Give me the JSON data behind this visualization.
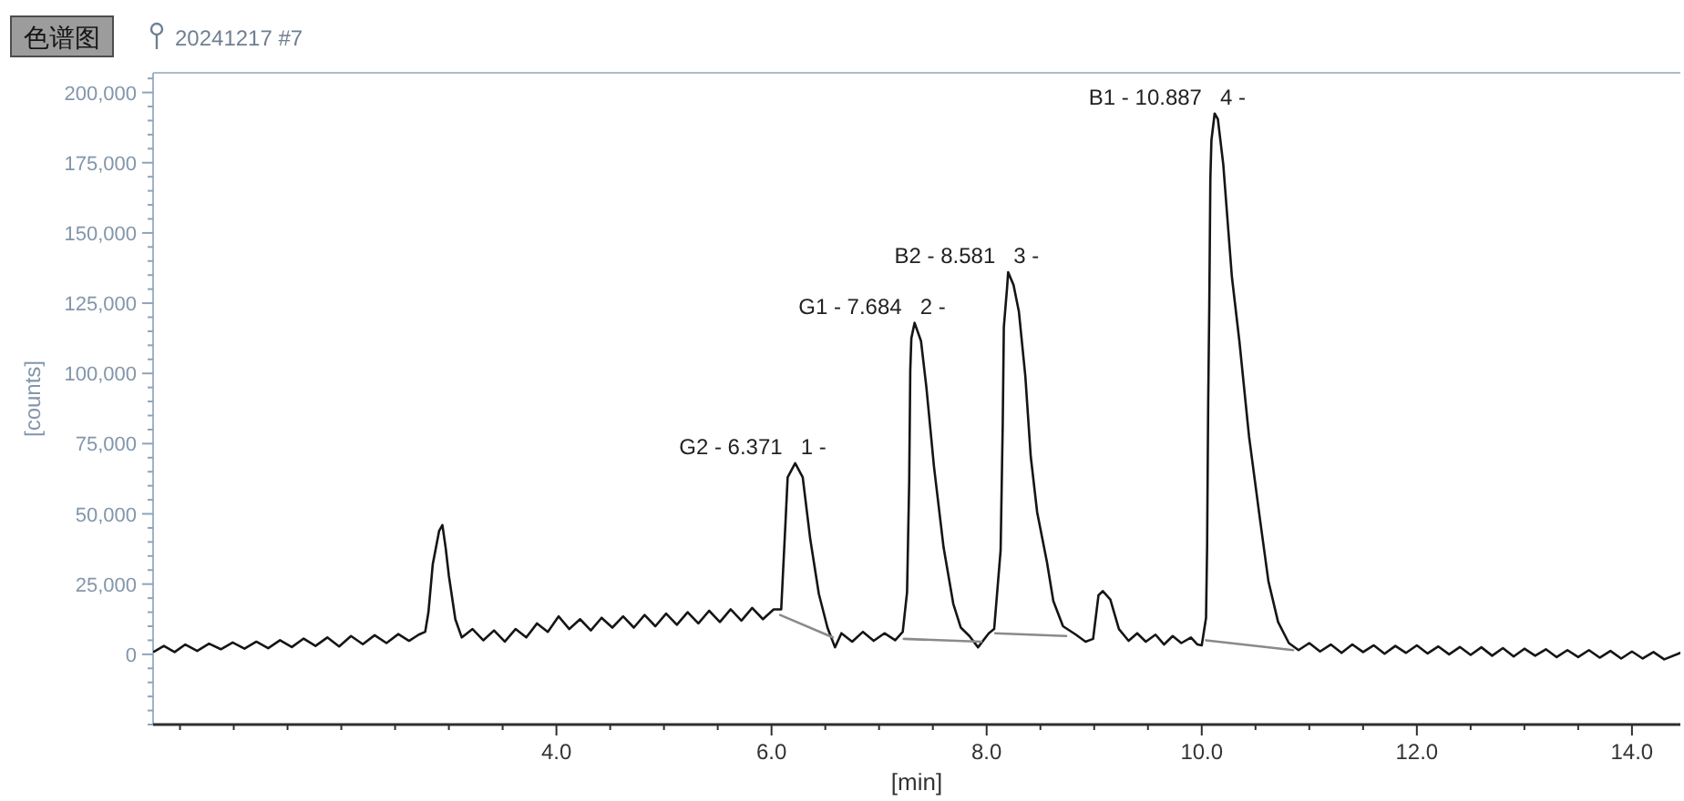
{
  "chart_data": {
    "type": "line",
    "title": "色谱图",
    "subtitle": "20241217 #7",
    "xlabel": "[min]",
    "ylabel": "[counts]",
    "xlim": [
      0.25,
      14.45
    ],
    "ylim": [
      -25000,
      207000
    ],
    "xticks": [
      {
        "value": 0.5,
        "label": null
      },
      {
        "value": 1,
        "label": null
      },
      {
        "value": 1.5,
        "label": null
      },
      {
        "value": 2,
        "label": null
      },
      {
        "value": 2.5,
        "label": null
      },
      {
        "value": 3,
        "label": null
      },
      {
        "value": 3.5,
        "label": null
      },
      {
        "value": 4,
        "label": "4.0"
      },
      {
        "value": 4.5,
        "label": null
      },
      {
        "value": 5,
        "label": null
      },
      {
        "value": 5.5,
        "label": null
      },
      {
        "value": 6,
        "label": "6.0"
      },
      {
        "value": 6.5,
        "label": null
      },
      {
        "value": 7,
        "label": null
      },
      {
        "value": 7.5,
        "label": null
      },
      {
        "value": 8,
        "label": "8.0"
      },
      {
        "value": 8.5,
        "label": null
      },
      {
        "value": 9,
        "label": null
      },
      {
        "value": 9.5,
        "label": null
      },
      {
        "value": 10,
        "label": "10.0"
      },
      {
        "value": 10.5,
        "label": null
      },
      {
        "value": 11,
        "label": null
      },
      {
        "value": 11.5,
        "label": null
      },
      {
        "value": 12,
        "label": "12.0"
      },
      {
        "value": 12.5,
        "label": null
      },
      {
        "value": 13,
        "label": null
      },
      {
        "value": 13.5,
        "label": null
      },
      {
        "value": 14,
        "label": "14.0"
      }
    ],
    "yticks": [
      {
        "value": -25000,
        "label": null
      },
      {
        "value": -20000,
        "label": null
      },
      {
        "value": -15000,
        "label": null
      },
      {
        "value": -10000,
        "label": null
      },
      {
        "value": -5000,
        "label": null
      },
      0,
      {
        "value": 5000,
        "label": null
      },
      {
        "value": 10000,
        "label": null
      },
      {
        "value": 15000,
        "label": null
      },
      {
        "value": 20000,
        "label": null
      },
      {
        "value": 25000,
        "label": "25,000"
      },
      {
        "value": 30000,
        "label": null
      },
      {
        "value": 35000,
        "label": null
      },
      {
        "value": 40000,
        "label": null
      },
      {
        "value": 45000,
        "label": null
      },
      {
        "value": 50000,
        "label": "50,000"
      },
      {
        "value": 55000,
        "label": null
      },
      {
        "value": 60000,
        "label": null
      },
      {
        "value": 65000,
        "label": null
      },
      {
        "value": 70000,
        "label": null
      },
      {
        "value": 75000,
        "label": "75,000"
      },
      {
        "value": 80000,
        "label": null
      },
      {
        "value": 85000,
        "label": null
      },
      {
        "value": 90000,
        "label": null
      },
      {
        "value": 95000,
        "label": null
      },
      {
        "value": 100000,
        "label": "100,000"
      },
      {
        "value": 105000,
        "label": null
      },
      {
        "value": 110000,
        "label": null
      },
      {
        "value": 115000,
        "label": null
      },
      {
        "value": 120000,
        "label": null
      },
      {
        "value": 125000,
        "label": "125,000"
      },
      {
        "value": 130000,
        "label": null
      },
      {
        "value": 135000,
        "label": null
      },
      {
        "value": 140000,
        "label": null
      },
      {
        "value": 145000,
        "label": null
      },
      {
        "value": 150000,
        "label": "150,000"
      },
      {
        "value": 155000,
        "label": null
      },
      {
        "value": 160000,
        "label": null
      },
      {
        "value": 165000,
        "label": null
      },
      {
        "value": 170000,
        "label": null
      },
      {
        "value": 175000,
        "label": "175,000"
      },
      {
        "value": 180000,
        "label": null
      },
      {
        "value": 185000,
        "label": null
      },
      {
        "value": 190000,
        "label": null
      },
      {
        "value": 195000,
        "label": null
      },
      {
        "value": 200000,
        "label": "200,000"
      },
      {
        "value": 205000,
        "label": null
      }
    ],
    "series": [
      {
        "color": "#151515",
        "x": [
          0.26,
          0.35,
          0.45,
          0.55,
          0.66,
          0.77,
          0.88,
          0.99,
          1.1,
          1.21,
          1.32,
          1.43,
          1.54,
          1.65,
          1.76,
          1.87,
          1.98,
          2.09,
          2.2,
          2.31,
          2.42,
          2.53,
          2.63,
          2.72,
          2.78,
          2.81,
          2.85,
          2.91,
          2.94,
          2.97,
          3.0,
          3.06,
          3.12,
          3.22,
          3.32,
          3.42,
          3.52,
          3.62,
          3.72,
          3.82,
          3.92,
          4.02,
          4.12,
          4.22,
          4.32,
          4.42,
          4.52,
          4.62,
          4.72,
          4.82,
          4.92,
          5.02,
          5.12,
          5.22,
          5.32,
          5.42,
          5.52,
          5.62,
          5.72,
          5.82,
          5.92,
          6.02,
          6.09,
          6.13,
          6.15,
          6.22,
          6.29,
          6.36,
          6.44,
          6.52,
          6.59,
          6.65,
          6.75,
          6.85,
          6.95,
          7.05,
          7.15,
          7.22,
          7.26,
          7.28,
          7.29,
          7.3,
          7.33,
          7.39,
          7.44,
          7.51,
          7.6,
          7.69,
          7.76,
          7.84,
          7.92,
          8.02,
          8.07,
          8.13,
          8.15,
          8.16,
          8.19,
          8.2,
          8.25,
          8.3,
          8.36,
          8.41,
          8.47,
          8.56,
          8.62,
          8.71,
          8.83,
          8.92,
          8.99,
          9.04,
          9.08,
          9.15,
          9.23,
          9.32,
          9.4,
          9.48,
          9.57,
          9.65,
          9.73,
          9.81,
          9.9,
          9.96,
          10.0,
          10.04,
          10.05,
          10.06,
          10.07,
          10.08,
          10.09,
          10.12,
          10.15,
          10.2,
          10.28,
          10.35,
          10.44,
          10.54,
          10.62,
          10.71,
          10.81,
          10.9,
          11.0,
          11.1,
          11.2,
          11.3,
          11.4,
          11.5,
          11.6,
          11.7,
          11.8,
          11.9,
          12.0,
          12.1,
          12.2,
          12.3,
          12.4,
          12.5,
          12.6,
          12.7,
          12.8,
          12.9,
          13.0,
          13.1,
          13.2,
          13.3,
          13.4,
          13.5,
          13.6,
          13.7,
          13.8,
          13.9,
          14.0,
          14.1,
          14.2,
          14.3,
          14.45
        ],
        "values": [
          1000,
          3000,
          800,
          3500,
          1200,
          3800,
          1800,
          4200,
          2000,
          4500,
          2200,
          5000,
          2600,
          5600,
          3000,
          6000,
          2800,
          6500,
          3600,
          6800,
          4000,
          7200,
          4800,
          7000,
          8000,
          15000,
          32000,
          44000,
          46000,
          38000,
          28000,
          12500,
          6000,
          9000,
          5000,
          8500,
          4500,
          9000,
          6000,
          11000,
          8000,
          13500,
          9000,
          12500,
          8500,
          13000,
          9500,
          13500,
          9500,
          14000,
          10000,
          14500,
          10500,
          15000,
          11000,
          15500,
          11500,
          16000,
          12000,
          16500,
          12500,
          16000,
          16000,
          47000,
          63000,
          68000,
          63000,
          41000,
          21500,
          9500,
          2500,
          7500,
          4500,
          8000,
          4800,
          7500,
          5000,
          8000,
          22000,
          61500,
          101000,
          112500,
          118000,
          111500,
          95000,
          67000,
          38000,
          18000,
          9500,
          6500,
          2500,
          7500,
          9000,
          37000,
          82500,
          116500,
          130500,
          136000,
          131500,
          122000,
          99000,
          70500,
          50500,
          33000,
          19000,
          10000,
          7000,
          4500,
          5500,
          21000,
          22500,
          19500,
          9000,
          4800,
          7500,
          4500,
          7000,
          3500,
          6500,
          4000,
          6000,
          3500,
          3200,
          13000,
          38500,
          89500,
          123500,
          169000,
          183000,
          192500,
          190500,
          174500,
          134500,
          111500,
          77500,
          48500,
          26000,
          11500,
          4000,
          1500,
          4000,
          1000,
          3500,
          500,
          3500,
          800,
          3200,
          200,
          3000,
          500,
          3200,
          300,
          2800,
          0,
          2600,
          -200,
          2500,
          -500,
          2200,
          -800,
          2000,
          -500,
          1800,
          -1000,
          1500,
          -1000,
          1500,
          -1200,
          1200,
          -1500,
          1000,
          -1500,
          800,
          -1800,
          500
        ]
      },
      {
        "color": "#8a8a8a",
        "x": [
          6.08,
          6.57
        ],
        "values": [
          14000,
          6000
        ]
      },
      {
        "color": "#8a8a8a",
        "x": [
          7.23,
          7.95
        ],
        "values": [
          5500,
          4500
        ]
      },
      {
        "color": "#8a8a8a",
        "x": [
          8.08,
          8.74
        ],
        "values": [
          7500,
          6500
        ]
      },
      {
        "color": "#8a8a8a",
        "x": [
          10.04,
          10.85
        ],
        "values": [
          5000,
          1500
        ]
      }
    ],
    "annotations": [
      {
        "text": "1 -",
        "x": 6.22,
        "y": 68000
      },
      {
        "text": "G2 - 6.371",
        "x": 6.22,
        "y": 68000
      },
      {
        "text": "2 -",
        "x": 7.33,
        "y": 118000
      },
      {
        "text": "G1 - 7.684",
        "x": 7.33,
        "y": 118000
      },
      {
        "text": "3 -",
        "x": 8.2,
        "y": 136000
      },
      {
        "text": "B2 - 8.581",
        "x": 8.2,
        "y": 136000
      },
      {
        "text": "4 -",
        "x": 10.12,
        "y": 192500
      },
      {
        "text": "B1 - 10.887",
        "x": 10.12,
        "y": 192500
      }
    ]
  }
}
